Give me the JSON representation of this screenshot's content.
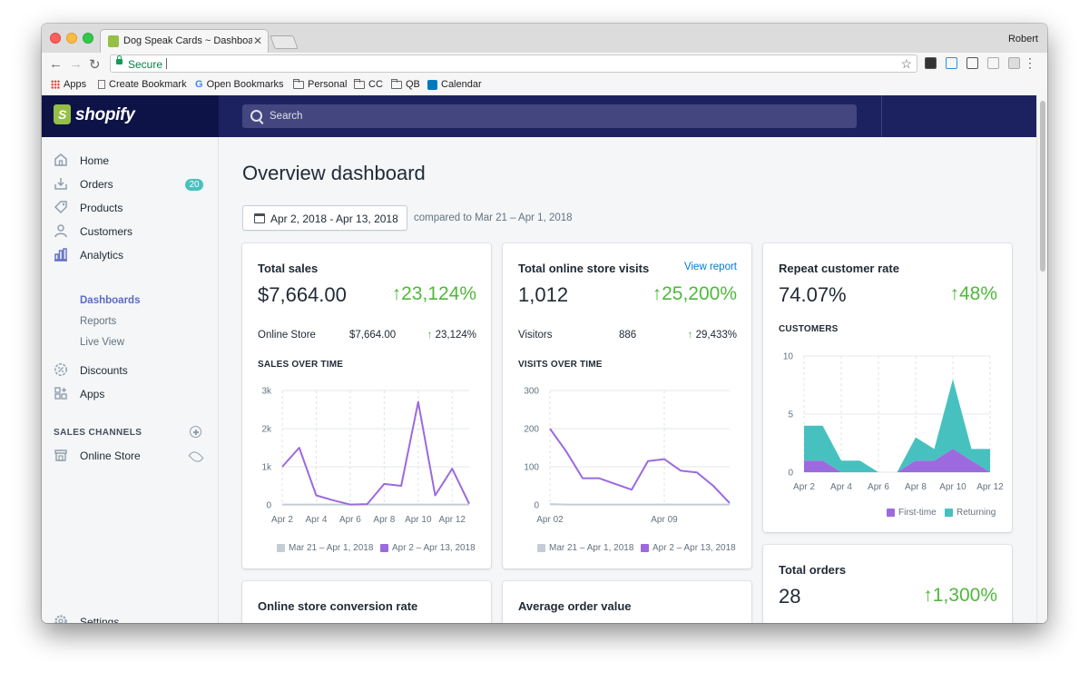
{
  "browser": {
    "tab_title": "Dog Speak Cards ~ Dashboard",
    "user": "Robert",
    "secure_label": "Secure",
    "bookmarks": [
      "Apps",
      "Create Bookmark",
      "Open Bookmarks",
      "Personal",
      "CC",
      "QB",
      "Calendar"
    ]
  },
  "shopify": {
    "brand": "shopify",
    "search_placeholder": "Search"
  },
  "sidebar": {
    "items": [
      {
        "label": "Home",
        "icon": "home-icon"
      },
      {
        "label": "Orders",
        "icon": "orders-icon",
        "badge": "20"
      },
      {
        "label": "Products",
        "icon": "tag-icon"
      },
      {
        "label": "Customers",
        "icon": "person-icon"
      },
      {
        "label": "Analytics",
        "icon": "bar-chart-icon"
      }
    ],
    "analytics_sub": [
      "Dashboards",
      "Reports",
      "Live View"
    ],
    "items2": [
      {
        "label": "Discounts",
        "icon": "discount-icon"
      },
      {
        "label": "Apps",
        "icon": "apps-icon"
      }
    ],
    "sales_channels_heading": "SALES CHANNELS",
    "online_store": "Online Store",
    "settings": "Settings"
  },
  "main": {
    "title": "Overview dashboard",
    "date_range": "Apr 2, 2018 - Apr 13, 2018",
    "compared_to": "compared to Mar 21 – Apr 1, 2018"
  },
  "cards": {
    "total_sales": {
      "title": "Total sales",
      "value": "$7,664.00",
      "change": "↑23,124%",
      "row_label": "Online Store",
      "row_value": "$7,664.00",
      "row_change": "23,124%",
      "row_arrow": "↑",
      "chart_title": "SALES OVER TIME",
      "legend": [
        "Mar 21 – Apr 1, 2018",
        "Apr 2 – Apr 13, 2018"
      ]
    },
    "visits": {
      "title": "Total online store visits",
      "link": "View report",
      "value": "1,012",
      "change": "↑25,200%",
      "row_label": "Visitors",
      "row_value": "886",
      "row_change": "29,433%",
      "row_arrow": "↑",
      "chart_title": "VISITS OVER TIME",
      "legend": [
        "Mar 21 – Apr 1, 2018",
        "Apr 2 – Apr 13, 2018"
      ]
    },
    "repeat": {
      "title": "Repeat customer rate",
      "value": "74.07%",
      "change": "↑48%",
      "chart_title": "CUSTOMERS",
      "legend": [
        "First-time",
        "Returning"
      ]
    },
    "orders": {
      "title": "Total orders",
      "value": "28",
      "change": "↑1,300%"
    },
    "conversion": {
      "title": "Online store conversion rate"
    },
    "aov": {
      "title": "Average order value"
    }
  },
  "chart_data": [
    {
      "type": "line",
      "title": "SALES OVER TIME",
      "x": [
        "Apr 2",
        "Apr 3",
        "Apr 4",
        "Apr 5",
        "Apr 6",
        "Apr 7",
        "Apr 8",
        "Apr 9",
        "Apr 10",
        "Apr 11",
        "Apr 12",
        "Apr 13"
      ],
      "xticks": [
        "Apr 2",
        "Apr 4",
        "Apr 6",
        "Apr 8",
        "Apr 10",
        "Apr 12"
      ],
      "yticks": [
        "0",
        "1k",
        "2k",
        "3k"
      ],
      "ylim": [
        0,
        3000
      ],
      "series": [
        {
          "name": "Mar 21 – Apr 1, 2018",
          "color": "#c4cdd5",
          "values": [
            10,
            10,
            10,
            10,
            10,
            10,
            10,
            10,
            10,
            10,
            10,
            10
          ]
        },
        {
          "name": "Apr 2 – Apr 13, 2018",
          "color": "#9c6ade",
          "values": [
            1000,
            1500,
            250,
            120,
            10,
            20,
            550,
            500,
            2700,
            250,
            950,
            30
          ]
        }
      ]
    },
    {
      "type": "line",
      "title": "VISITS OVER TIME",
      "x": [
        "Apr 02",
        "Apr 03",
        "Apr 04",
        "Apr 05",
        "Apr 06",
        "Apr 07",
        "Apr 08",
        "Apr 09",
        "Apr 10",
        "Apr 11",
        "Apr 12",
        "Apr 13"
      ],
      "xticks": [
        "Apr 02",
        "Apr 09"
      ],
      "yticks": [
        "0",
        "100",
        "200",
        "300"
      ],
      "ylim": [
        0,
        300
      ],
      "series": [
        {
          "name": "Mar 21 – Apr 1, 2018",
          "color": "#c4cdd5",
          "values": [
            2,
            1,
            1,
            1,
            1,
            1,
            1,
            1,
            1,
            1,
            1,
            1
          ]
        },
        {
          "name": "Apr 2 – Apr 13, 2018",
          "color": "#9c6ade",
          "values": [
            200,
            140,
            70,
            70,
            55,
            40,
            115,
            120,
            90,
            85,
            50,
            5
          ]
        }
      ]
    },
    {
      "type": "area",
      "title": "CUSTOMERS",
      "x": [
        "Apr 2",
        "Apr 3",
        "Apr 4",
        "Apr 5",
        "Apr 6",
        "Apr 7",
        "Apr 8",
        "Apr 9",
        "Apr 10",
        "Apr 11",
        "Apr 12"
      ],
      "xticks": [
        "Apr 2",
        "Apr 4",
        "Apr 6",
        "Apr 8",
        "Apr 10",
        "Apr 12"
      ],
      "yticks": [
        "0",
        "5",
        "10"
      ],
      "ylim": [
        0,
        10
      ],
      "series": [
        {
          "name": "First-time",
          "color": "#9c6ade",
          "values": [
            1,
            1,
            0,
            0,
            0,
            0,
            1,
            1,
            2,
            1,
            0
          ]
        },
        {
          "name": "Returning",
          "color": "#47c1bf",
          "values": [
            3,
            3,
            1,
            1,
            0,
            0,
            2,
            1,
            6,
            1,
            2
          ]
        }
      ]
    }
  ]
}
